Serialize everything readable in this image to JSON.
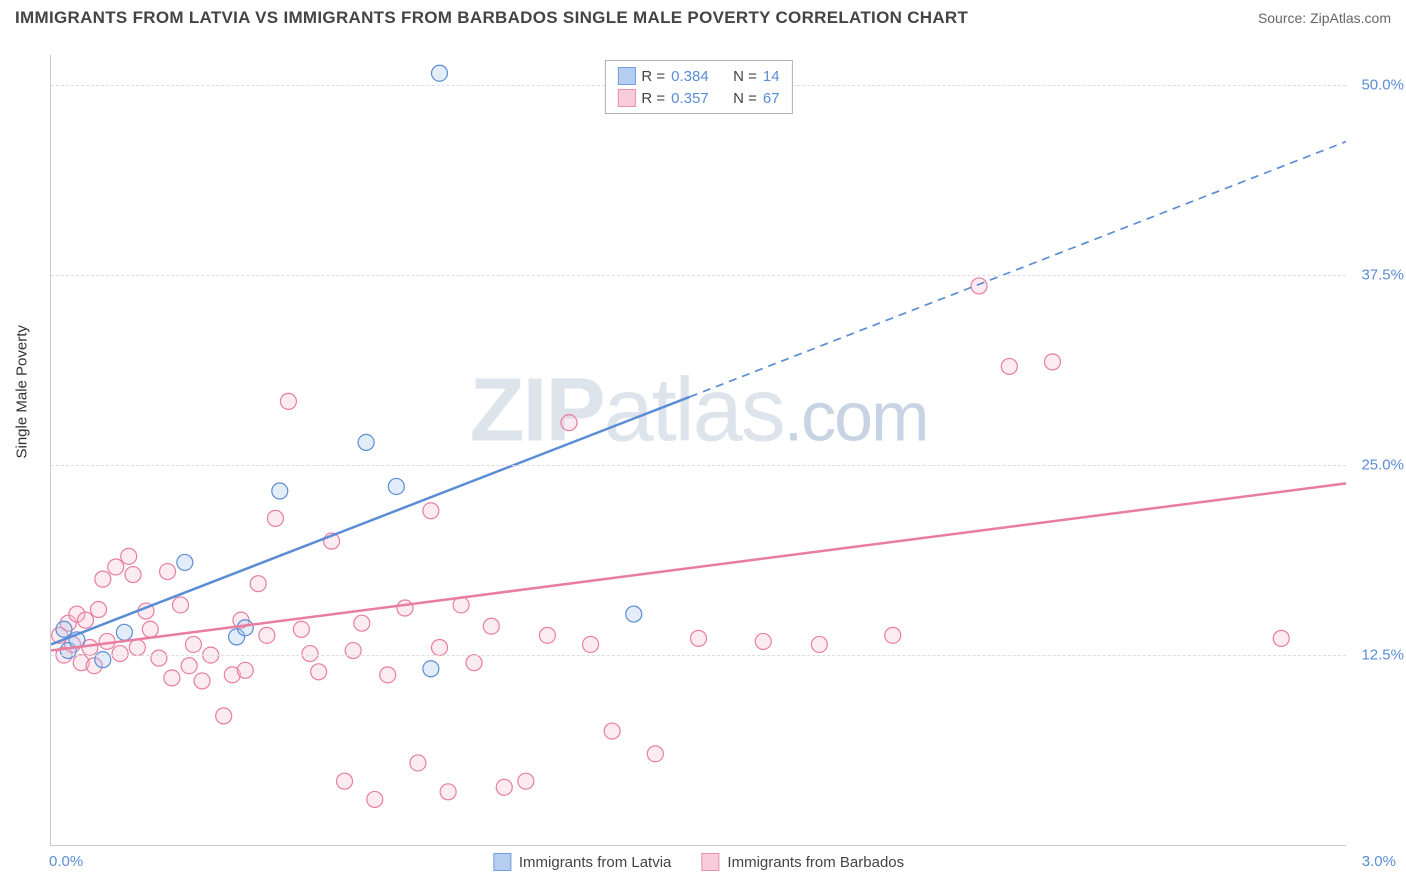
{
  "title": "IMMIGRANTS FROM LATVIA VS IMMIGRANTS FROM BARBADOS SINGLE MALE POVERTY CORRELATION CHART",
  "source_label": "Source: ZipAtlas.com",
  "watermark": {
    "part1": "ZIP",
    "part2": "atlas",
    "dot": ".com"
  },
  "y_axis_title": "Single Male Poverty",
  "chart": {
    "type": "scatter",
    "xlim": [
      0.0,
      3.0
    ],
    "ylim": [
      0.0,
      52.0
    ],
    "x_ticks": [
      {
        "value": 0.0,
        "label": "0.0%"
      },
      {
        "value": 3.0,
        "label": "3.0%"
      }
    ],
    "y_ticks": [
      {
        "value": 12.5,
        "label": "12.5%"
      },
      {
        "value": 25.0,
        "label": "25.0%"
      },
      {
        "value": 37.5,
        "label": "37.5%"
      },
      {
        "value": 50.0,
        "label": "50.0%"
      }
    ],
    "grid_color": "#dddddd",
    "background_color": "#ffffff",
    "marker_radius": 8,
    "marker_stroke_width": 1.2,
    "marker_fill_opacity": 0.12,
    "series": [
      {
        "id": "latvia",
        "label": "Immigrants from Latvia",
        "color_stroke": "#5b8dd6",
        "color_fill": "#a9c5ec",
        "R": "0.384",
        "N": "14",
        "points": [
          [
            0.03,
            14.2
          ],
          [
            0.04,
            12.8
          ],
          [
            0.06,
            13.5
          ],
          [
            0.12,
            12.2
          ],
          [
            0.17,
            14.0
          ],
          [
            0.31,
            18.6
          ],
          [
            0.43,
            13.7
          ],
          [
            0.45,
            14.3
          ],
          [
            0.53,
            23.3
          ],
          [
            0.73,
            26.5
          ],
          [
            0.8,
            23.6
          ],
          [
            0.88,
            11.6
          ],
          [
            0.9,
            50.8
          ],
          [
            1.35,
            15.2
          ]
        ],
        "trend": {
          "x1": 0.0,
          "y1": 13.2,
          "x2": 1.48,
          "y2": 29.5,
          "dash_from_x": 1.48,
          "x3": 3.0,
          "y3": 46.3,
          "width": 2.5
        }
      },
      {
        "id": "barbados",
        "label": "Immigrants from Barbados",
        "color_stroke": "#e87da0",
        "color_fill": "#f7c4d4",
        "R": "0.357",
        "N": "67",
        "points": [
          [
            0.02,
            13.8
          ],
          [
            0.03,
            12.5
          ],
          [
            0.04,
            14.6
          ],
          [
            0.05,
            13.2
          ],
          [
            0.06,
            15.2
          ],
          [
            0.07,
            12.0
          ],
          [
            0.08,
            14.8
          ],
          [
            0.09,
            13.0
          ],
          [
            0.1,
            11.8
          ],
          [
            0.11,
            15.5
          ],
          [
            0.12,
            17.5
          ],
          [
            0.13,
            13.4
          ],
          [
            0.15,
            18.3
          ],
          [
            0.16,
            12.6
          ],
          [
            0.18,
            19.0
          ],
          [
            0.19,
            17.8
          ],
          [
            0.2,
            13.0
          ],
          [
            0.22,
            15.4
          ],
          [
            0.23,
            14.2
          ],
          [
            0.25,
            12.3
          ],
          [
            0.27,
            18.0
          ],
          [
            0.28,
            11.0
          ],
          [
            0.3,
            15.8
          ],
          [
            0.32,
            11.8
          ],
          [
            0.33,
            13.2
          ],
          [
            0.35,
            10.8
          ],
          [
            0.37,
            12.5
          ],
          [
            0.4,
            8.5
          ],
          [
            0.42,
            11.2
          ],
          [
            0.44,
            14.8
          ],
          [
            0.45,
            11.5
          ],
          [
            0.48,
            17.2
          ],
          [
            0.5,
            13.8
          ],
          [
            0.52,
            21.5
          ],
          [
            0.55,
            29.2
          ],
          [
            0.58,
            14.2
          ],
          [
            0.6,
            12.6
          ],
          [
            0.62,
            11.4
          ],
          [
            0.65,
            20.0
          ],
          [
            0.68,
            4.2
          ],
          [
            0.7,
            12.8
          ],
          [
            0.72,
            14.6
          ],
          [
            0.75,
            3.0
          ],
          [
            0.78,
            11.2
          ],
          [
            0.82,
            15.6
          ],
          [
            0.85,
            5.4
          ],
          [
            0.88,
            22.0
          ],
          [
            0.9,
            13.0
          ],
          [
            0.92,
            3.5
          ],
          [
            0.95,
            15.8
          ],
          [
            0.98,
            12.0
          ],
          [
            1.02,
            14.4
          ],
          [
            1.05,
            3.8
          ],
          [
            1.1,
            4.2
          ],
          [
            1.15,
            13.8
          ],
          [
            1.2,
            27.8
          ],
          [
            1.25,
            13.2
          ],
          [
            1.3,
            7.5
          ],
          [
            1.4,
            6.0
          ],
          [
            1.5,
            13.6
          ],
          [
            1.65,
            13.4
          ],
          [
            1.78,
            13.2
          ],
          [
            1.95,
            13.8
          ],
          [
            2.15,
            36.8
          ],
          [
            2.22,
            31.5
          ],
          [
            2.32,
            31.8
          ],
          [
            2.85,
            13.6
          ]
        ],
        "trend": {
          "x1": 0.0,
          "y1": 12.8,
          "x2": 3.0,
          "y2": 23.8,
          "width": 2.5
        }
      }
    ]
  },
  "legend_top_prefix_R": "R = ",
  "legend_top_prefix_N": "N = "
}
